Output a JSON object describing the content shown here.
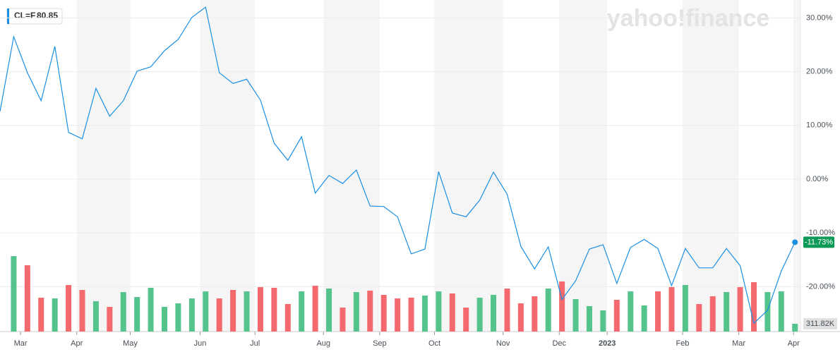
{
  "symbol": "CL=F",
  "price": "80.85",
  "watermark": "yahoo!finance",
  "chart_data": {
    "type": "line",
    "series": [
      {
        "name": "CL=F",
        "color": "#1a8fe3",
        "values": [
          12.6,
          26.5,
          19.8,
          14.6,
          24.7,
          8.7,
          7.5,
          16.9,
          11.7,
          14.6,
          20.1,
          20.9,
          23.9,
          26.0,
          30.1,
          32.0,
          19.8,
          17.8,
          18.6,
          14.7,
          6.7,
          3.5,
          7.9,
          -2.6,
          0.7,
          -0.8,
          1.7,
          -5.0,
          -5.1,
          -7.0,
          -13.9,
          -13.0,
          1.4,
          -6.3,
          -7.0,
          -3.9,
          1.3,
          -2.8,
          -12.5,
          -16.7,
          -12.6,
          -22.4,
          -18.9,
          -13.0,
          -12.2,
          -19.4,
          -12.7,
          -11.2,
          -12.9,
          -19.8,
          -12.9,
          -16.5,
          -16.5,
          -12.9,
          -16.1,
          -26.8,
          -24.4,
          -17.1,
          -11.73
        ],
        "value_labels": [
          null,
          null,
          null,
          null,
          null,
          null,
          null,
          null,
          null,
          null,
          null,
          null,
          null,
          null,
          null,
          null,
          null,
          null,
          null,
          null,
          null,
          null,
          null,
          null,
          null,
          null,
          null,
          null,
          null,
          null,
          null,
          null,
          null,
          null,
          null,
          null,
          null,
          null,
          null,
          null,
          null,
          null,
          null,
          null,
          null,
          null,
          null,
          null,
          null,
          null,
          null,
          null,
          null,
          null,
          null,
          null,
          null,
          null,
          "-11.73%"
        ]
      }
    ],
    "volume": {
      "values": [
        null,
        3033,
        2665,
        1361,
        1332,
        1871,
        1673,
        1219,
        992,
        1588,
        1389,
        1758,
        992,
        1134,
        1332,
        1616,
        1332,
        1673,
        1616,
        1786,
        1758,
        1106,
        1616,
        1843,
        1729,
        964,
        1588,
        1644,
        1474,
        1332,
        1361,
        1446,
        1616,
        1531,
        964,
        1361,
        1474,
        1729,
        1134,
        1418,
        1729,
        2013,
        1304,
        1021,
        851,
        1276,
        1616,
        1049,
        1616,
        1786,
        1871,
        1106,
        1418,
        1588,
        1786,
        1985,
        1588,
        1616,
        311.82
      ],
      "value_labels": [
        null,
        null,
        null,
        null,
        null,
        null,
        null,
        null,
        null,
        null,
        null,
        null,
        null,
        null,
        null,
        null,
        null,
        null,
        null,
        null,
        null,
        null,
        null,
        null,
        null,
        null,
        null,
        null,
        null,
        null,
        null,
        null,
        null,
        null,
        null,
        null,
        null,
        null,
        null,
        null,
        null,
        null,
        null,
        null,
        null,
        null,
        null,
        null,
        null,
        null,
        null,
        null,
        null,
        null,
        null,
        null,
        null,
        null,
        "311.82K"
      ],
      "colors": [
        null,
        "#54c48c",
        "#f4696e",
        "#f4696e",
        "#54c48c",
        "#f4696e",
        "#f4696e",
        "#54c48c",
        "#f4696e",
        "#54c48c",
        "#54c48c",
        "#54c48c",
        "#54c48c",
        "#54c48c",
        "#54c48c",
        "#54c48c",
        "#f4696e",
        "#f4696e",
        "#54c48c",
        "#f4696e",
        "#f4696e",
        "#f4696e",
        "#54c48c",
        "#f4696e",
        "#54c48c",
        "#f4696e",
        "#54c48c",
        "#f4696e",
        "#f4696e",
        "#f4696e",
        "#f4696e",
        "#54c48c",
        "#54c48c",
        "#f4696e",
        "#f4696e",
        "#54c48c",
        "#54c48c",
        "#f4696e",
        "#f4696e",
        "#f4696e",
        "#54c48c",
        "#f4696e",
        "#54c48c",
        "#54c48c",
        "#54c48c",
        "#f4696e",
        "#54c48c",
        "#54c48c",
        "#f4696e",
        "#f4696e",
        "#54c48c",
        "#f4696e",
        "#f4696e",
        "#54c48c",
        "#f4696e",
        "#f4696e",
        "#54c48c",
        "#54c48c",
        "#54c48c"
      ],
      "vlim": [
        0,
        4000
      ]
    },
    "xlim": [
      0,
      58.4
    ],
    "xticks": [
      {
        "value": 1.5,
        "label": "Mar"
      },
      {
        "value": 5.6,
        "label": "Apr"
      },
      {
        "value": 9.5,
        "label": "May"
      },
      {
        "value": 14.6,
        "label": "Jun"
      },
      {
        "value": 18.6,
        "label": "Jul"
      },
      {
        "value": 23.6,
        "label": "Aug"
      },
      {
        "value": 27.7,
        "label": "Sep"
      },
      {
        "value": 31.7,
        "label": "Oct"
      },
      {
        "value": 36.7,
        "label": "Nov"
      },
      {
        "value": 40.8,
        "label": "Dec"
      },
      {
        "value": 44.3,
        "label": "2023"
      },
      {
        "value": 49.8,
        "label": "Feb"
      },
      {
        "value": 53.9,
        "label": "Mar"
      },
      {
        "value": 57.9,
        "label": "Apr"
      }
    ],
    "ylim": [
      -28.35,
      33.33
    ],
    "yticks": [
      {
        "value": 30,
        "label": "30.00%"
      },
      {
        "value": 20,
        "label": "20.00%"
      },
      {
        "value": 10,
        "label": "10.00%"
      },
      {
        "value": 0,
        "label": "0.00%"
      },
      {
        "value": -10,
        "label": "-10.00%"
      },
      {
        "value": -20,
        "label": "-20.00%"
      }
    ],
    "grid": true
  }
}
